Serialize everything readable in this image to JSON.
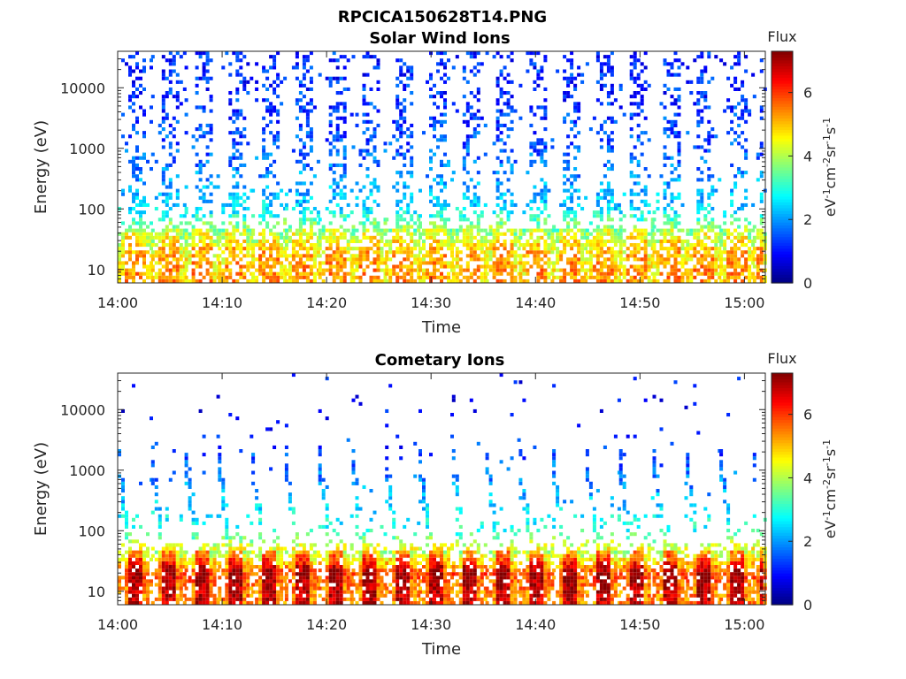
{
  "figure_title": "RPCICA150628T14.PNG",
  "chart_data": [
    {
      "type": "heatmap",
      "title": "Solar Wind Ions",
      "xlabel": "Time",
      "ylabel": "Energy (eV)",
      "x_ticks": [
        "14:00",
        "14:10",
        "14:20",
        "14:30",
        "14:40",
        "14:50",
        "15:00"
      ],
      "xlim": [
        "14:00",
        "15:02"
      ],
      "y_ticks": [
        "10",
        "100",
        "1000",
        "10000"
      ],
      "y_tick_values": [
        10,
        100,
        1000,
        10000
      ],
      "ylim": [
        6,
        40000
      ],
      "y_scale": "log",
      "colorbar": {
        "title": "Flux",
        "label": "eV-1cm-2sr-1s-1",
        "ticks": [
          "0",
          "2",
          "4",
          "6"
        ],
        "tick_values": [
          0,
          2,
          4,
          6
        ],
        "range": [
          0,
          7.3
        ],
        "colormap": "jet"
      },
      "sweep_period_min": 3.2,
      "sweep_starts_min": [
        0.0,
        3.2,
        6.4,
        9.6,
        12.8,
        16.0,
        19.2,
        22.4,
        25.6,
        28.8,
        32.0,
        35.2,
        38.4,
        41.6,
        44.8,
        48.0,
        51.2,
        54.4,
        57.6,
        60.8
      ],
      "band_profile": [
        {
          "energy_eV": 10,
          "flux": 5.2
        },
        {
          "energy_eV": 20,
          "flux": 5.0
        },
        {
          "energy_eV": 40,
          "flux": 4.2
        },
        {
          "energy_eV": 100,
          "flux": 2.5
        },
        {
          "energy_eV": 1000,
          "flux": 1.5
        },
        {
          "energy_eV": 10000,
          "flux": 1.2
        }
      ]
    },
    {
      "type": "heatmap",
      "title": "Cometary Ions",
      "xlabel": "Time",
      "ylabel": "Energy (eV)",
      "x_ticks": [
        "14:00",
        "14:10",
        "14:20",
        "14:30",
        "14:40",
        "14:50",
        "15:00"
      ],
      "xlim": [
        "14:00",
        "15:02"
      ],
      "y_ticks": [
        "10",
        "100",
        "1000",
        "10000"
      ],
      "y_tick_values": [
        10,
        100,
        1000,
        10000
      ],
      "ylim": [
        6,
        40000
      ],
      "y_scale": "log",
      "colorbar": {
        "title": "Flux",
        "label": "eV-1cm-2sr-1s-1",
        "ticks": [
          "0",
          "2",
          "4",
          "6"
        ],
        "tick_values": [
          0,
          2,
          4,
          6
        ],
        "range": [
          0,
          7.3
        ],
        "colormap": "jet"
      },
      "sweep_period_min": 3.2,
      "sweep_starts_min": [
        0.0,
        3.2,
        6.4,
        9.6,
        12.8,
        16.0,
        19.2,
        22.4,
        25.6,
        28.8,
        32.0,
        35.2,
        38.4,
        41.6,
        44.8,
        48.0,
        51.2,
        54.4,
        57.6,
        60.8
      ],
      "band_profile": [
        {
          "energy_eV": 10,
          "flux": 6.2
        },
        {
          "energy_eV": 20,
          "flux": 6.6
        },
        {
          "energy_eV": 40,
          "flux": 5.0
        },
        {
          "energy_eV": 100,
          "flux": 3.0
        },
        {
          "energy_eV": 500,
          "flux": 2.0
        },
        {
          "energy_eV": 5000,
          "flux": 1.0
        }
      ]
    }
  ]
}
